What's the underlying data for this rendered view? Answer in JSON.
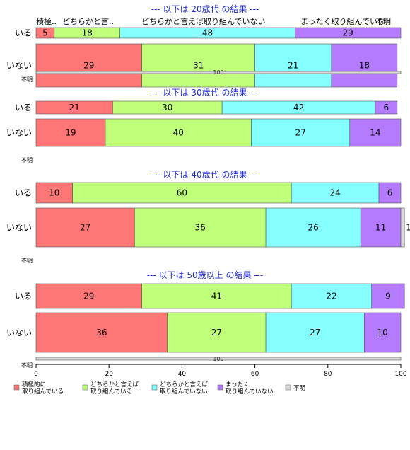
{
  "chart_data": {
    "type": "bar",
    "orientation": "horizontal",
    "stacked": true,
    "x_range": [
      0,
      100
    ],
    "x_ticks": [
      "0",
      "20",
      "40",
      "60",
      "80",
      "100"
    ],
    "colors": [
      "#ff7676",
      "#bfff7a",
      "#85ffff",
      "#b57bff",
      "#d9d9d9"
    ],
    "legend": {
      "position": "bottom",
      "entries": [
        [
          "積極的に",
          "取り組んでいる"
        ],
        [
          "どちらかと言えば",
          "取り組んでいる"
        ],
        [
          "どちらかと言えば",
          "取り組んでいない"
        ],
        [
          "まったく",
          "取り組んでいない"
        ],
        [
          "不明"
        ]
      ]
    },
    "header_labels": [
      "積極..",
      "どちらかと言..",
      "どちらかと言えば取り組んでいない",
      "まったく取り組んでいな",
      "不明"
    ],
    "panels": [
      {
        "title": "--- 以下は 20歳代 の結果 ---",
        "rows": [
          {
            "label": "いる",
            "values": [
              5,
              18,
              48,
              29,
              0
            ]
          },
          {
            "label": "いない",
            "values": [
              29,
              31,
              21,
              18,
              0
            ]
          },
          {
            "label": "不明",
            "values": [
              0,
              0,
              0,
              0,
              100
            ]
          }
        ]
      },
      {
        "title": "--- 以下は 30歳代 の結果 ---",
        "rows": [
          {
            "label": "いる",
            "values": [
              21,
              30,
              42,
              6,
              0
            ]
          },
          {
            "label": "いない",
            "values": [
              19,
              40,
              27,
              14,
              0
            ]
          },
          {
            "label": "不明",
            "values": []
          }
        ]
      },
      {
        "title": "--- 以下は 40歳代 の結果 ---",
        "rows": [
          {
            "label": "いる",
            "values": [
              10,
              60,
              24,
              6,
              0
            ]
          },
          {
            "label": "いない",
            "values": [
              27,
              36,
              26,
              11,
              1
            ]
          },
          {
            "label": "不明",
            "values": []
          }
        ]
      },
      {
        "title": "--- 以下は 50歳以上 の結果 ---",
        "rows": [
          {
            "label": "いる",
            "values": [
              29,
              41,
              22,
              9,
              0
            ]
          },
          {
            "label": "いない",
            "values": [
              36,
              27,
              27,
              10,
              0
            ]
          },
          {
            "label": "不明",
            "values": [
              0,
              0,
              0,
              0,
              100
            ]
          }
        ]
      }
    ]
  }
}
